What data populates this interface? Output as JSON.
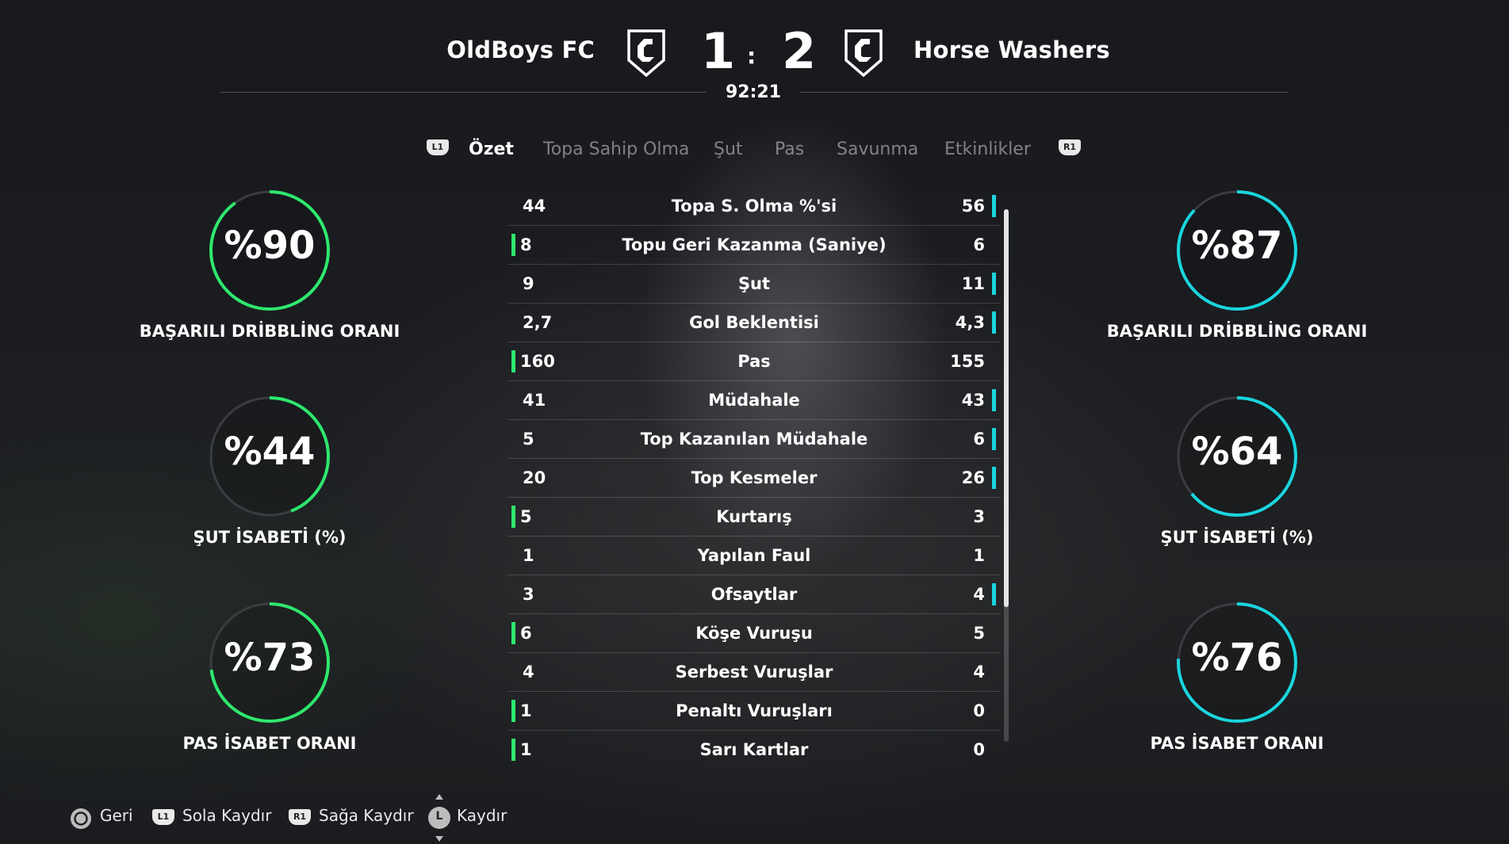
{
  "header": {
    "home_team": "OldBoys FC",
    "away_team": "Horse Washers",
    "home_score": "1",
    "away_score": "2",
    "separator": ":",
    "match_time": "92:21"
  },
  "tabs": {
    "left_button": "L1",
    "right_button": "R1",
    "items": [
      "Özet",
      "Topa Sahip Olma",
      "Şut",
      "Pas",
      "Savunma",
      "Etkinlikler"
    ],
    "active_index": 0
  },
  "stats": [
    {
      "label": "Topa S. Olma %'si",
      "home": "44",
      "away": "56",
      "leader": "away"
    },
    {
      "label": "Topu Geri Kazanma (Saniye)",
      "home": "8",
      "away": "6",
      "leader": "home"
    },
    {
      "label": "Şut",
      "home": "9",
      "away": "11",
      "leader": "away"
    },
    {
      "label": "Gol Beklentisi",
      "home": "2,7",
      "away": "4,3",
      "leader": "away"
    },
    {
      "label": "Pas",
      "home": "160",
      "away": "155",
      "leader": "home"
    },
    {
      "label": "Müdahale",
      "home": "41",
      "away": "43",
      "leader": "away"
    },
    {
      "label": "Top Kazanılan Müdahale",
      "home": "5",
      "away": "6",
      "leader": "away"
    },
    {
      "label": "Top Kesmeler",
      "home": "20",
      "away": "26",
      "leader": "away"
    },
    {
      "label": "Kurtarış",
      "home": "5",
      "away": "3",
      "leader": "home"
    },
    {
      "label": "Yapılan Faul",
      "home": "1",
      "away": "1",
      "leader": "none"
    },
    {
      "label": "Ofsaytlar",
      "home": "3",
      "away": "4",
      "leader": "away"
    },
    {
      "label": "Köşe Vuruşu",
      "home": "6",
      "away": "5",
      "leader": "home"
    },
    {
      "label": "Serbest Vuruşlar",
      "home": "4",
      "away": "4",
      "leader": "none"
    },
    {
      "label": "Penaltı Vuruşları",
      "home": "1",
      "away": "0",
      "leader": "home"
    },
    {
      "label": "Sarı Kartlar",
      "home": "1",
      "away": "0",
      "leader": "home"
    }
  ],
  "rings": {
    "home": [
      {
        "value": "%90",
        "fraction": 0.9,
        "label": "BAŞARILI DRİBBLİNG ORANI"
      },
      {
        "value": "%44",
        "fraction": 0.44,
        "label": "ŞUT İSABETİ (%)"
      },
      {
        "value": "%73",
        "fraction": 0.73,
        "label": "PAS İSABET ORANI"
      }
    ],
    "away": [
      {
        "value": "%87",
        "fraction": 0.87,
        "label": "BAŞARILI DRİBBLİNG ORANI"
      },
      {
        "value": "%64",
        "fraction": 0.64,
        "label": "ŞUT İSABETİ (%)"
      },
      {
        "value": "%76",
        "fraction": 0.76,
        "label": "PAS İSABET ORANI"
      }
    ]
  },
  "colors": {
    "home_accent": "#2ee86e",
    "away_accent": "#1ad5dd",
    "ring_track": "#3a3c40"
  },
  "footer": {
    "back_button": "",
    "back_label": "Geri",
    "left_button": "L1",
    "left_label": "Sola Kaydır",
    "right_button": "R1",
    "right_label": "Sağa Kaydır",
    "stick_button": "L",
    "stick_label": "Kaydır"
  }
}
